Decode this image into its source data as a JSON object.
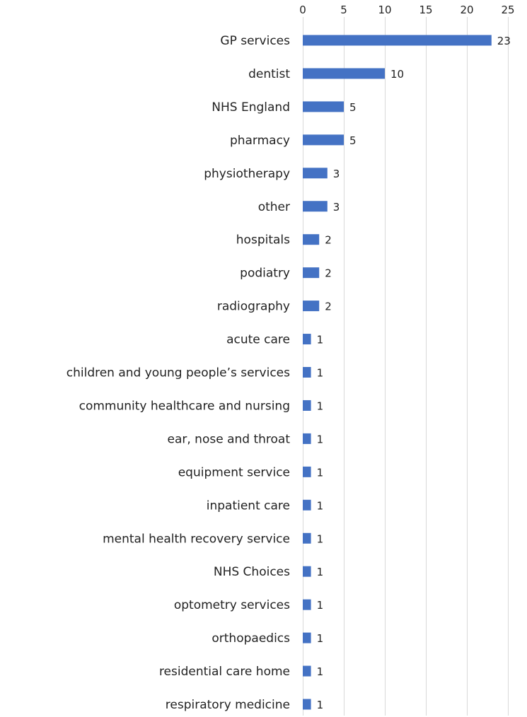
{
  "chart_data": {
    "type": "bar",
    "orientation": "horizontal",
    "categories": [
      "GP services",
      "dentist",
      "NHS England",
      "pharmacy",
      "physiotherapy",
      "other",
      "hospitals",
      "podiatry",
      "radiography",
      "acute care",
      "children and young people’s services",
      "community healthcare and nursing",
      "ear, nose and throat",
      "equipment service",
      "inpatient care",
      "mental health recovery service",
      "NHS Choices",
      "optometry services",
      "orthopaedics",
      "residential care home",
      "respiratory medicine"
    ],
    "values": [
      23,
      10,
      5,
      5,
      3,
      3,
      2,
      2,
      2,
      1,
      1,
      1,
      1,
      1,
      1,
      1,
      1,
      1,
      1,
      1,
      1
    ],
    "xlim": [
      0,
      25
    ],
    "xticks": [
      0,
      5,
      10,
      15,
      20,
      25
    ],
    "x_axis_position": "top",
    "grid": true,
    "data_labels": true,
    "legend": "none",
    "bar_color": "#4472c4",
    "title": "",
    "xlabel": "",
    "ylabel": ""
  }
}
